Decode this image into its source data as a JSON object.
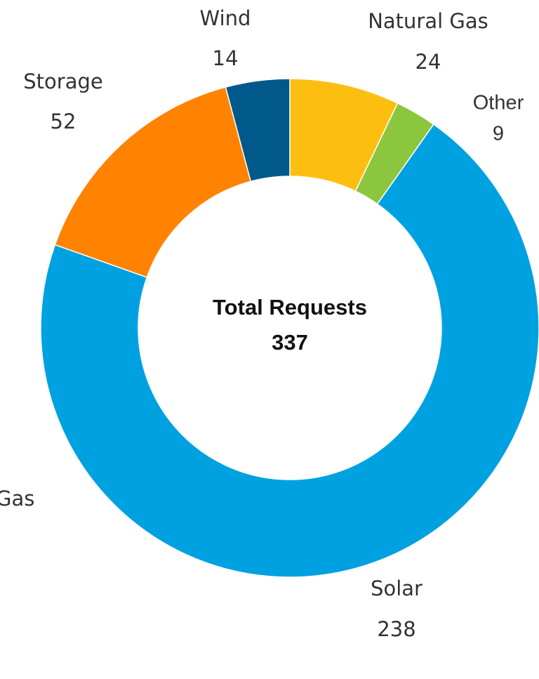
{
  "chart_data": {
    "type": "donut",
    "center_title": "Total Requests",
    "total": 337,
    "categories": [
      "Natural Gas",
      "Other",
      "Solar",
      "Storage",
      "Wind"
    ],
    "values": [
      24,
      9,
      238,
      52,
      14
    ],
    "colors": [
      "#fcbf10",
      "#8cc63f",
      "#00a1e1",
      "#ff8300",
      "#00598a"
    ],
    "annotation": "Gas"
  }
}
